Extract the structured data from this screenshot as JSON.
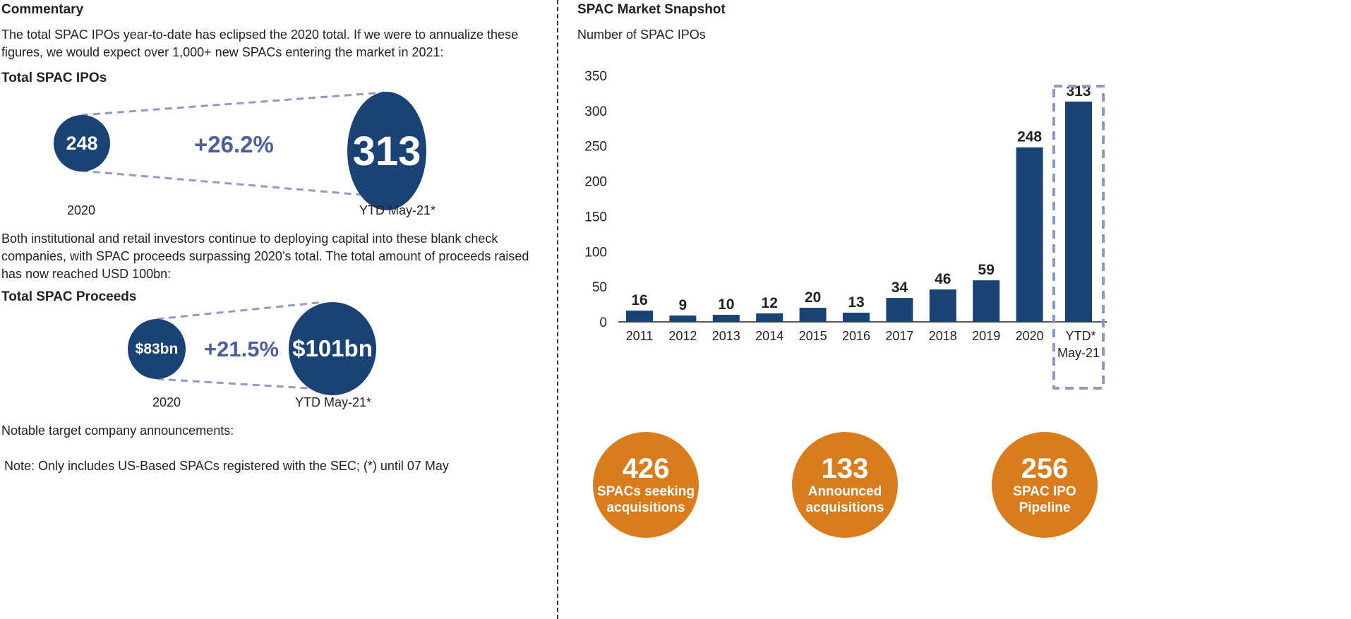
{
  "left": {
    "title": "Commentary",
    "intro": "The total SPAC IPOs year-to-date has eclipsed the 2020 total. If we were to annualize these figures, we would expect over 1,000+ new SPACs entering the market in 2021:",
    "ipos": {
      "heading": "Total SPAC IPOs",
      "from_value": "248",
      "to_value": "313",
      "change": "+26.2%",
      "from_label": "2020",
      "to_label": "YTD May-21*"
    },
    "paragraph2": "Both institutional and retail investors continue to deploying capital into these blank check companies, with SPAC proceeds surpassing 2020’s total. The total amount of proceeds raised has now reached USD 100bn:",
    "proceeds": {
      "heading": "Total SPAC Proceeds",
      "from_value": "$83bn",
      "to_value": "$101bn",
      "change": "+21.5%",
      "from_label": "2020",
      "to_label": "YTD May-21*"
    },
    "notable": "Notable target company announcements:",
    "note": "Note: Only includes US-Based SPACs registered with the SEC; (*) until 07 May"
  },
  "right": {
    "title": "SPAC Market Snapshot",
    "stats": [
      {
        "value": "426",
        "label": "SPACs seeking\nacquisitions"
      },
      {
        "value": "133",
        "label": "Announced\nacquisitions"
      },
      {
        "value": "256",
        "label": "SPAC IPO\nPipeline"
      }
    ]
  },
  "colors": {
    "navy": "#1b4275",
    "orange": "#d87c1e",
    "dash": "#8f9bc4"
  },
  "chart_data": {
    "type": "bar",
    "title": "Number of SPAC IPOs",
    "categories": [
      "2011",
      "2012",
      "2013",
      "2014",
      "2015",
      "2016",
      "2017",
      "2018",
      "2019",
      "2020",
      "YTD* May-21"
    ],
    "values": [
      16,
      9,
      10,
      12,
      20,
      13,
      34,
      46,
      59,
      248,
      313
    ],
    "ylim": [
      0,
      350
    ],
    "yticks": [
      0,
      50,
      100,
      150,
      200,
      250,
      300,
      350
    ],
    "grid": false,
    "highlight": "YTD* May-21"
  }
}
